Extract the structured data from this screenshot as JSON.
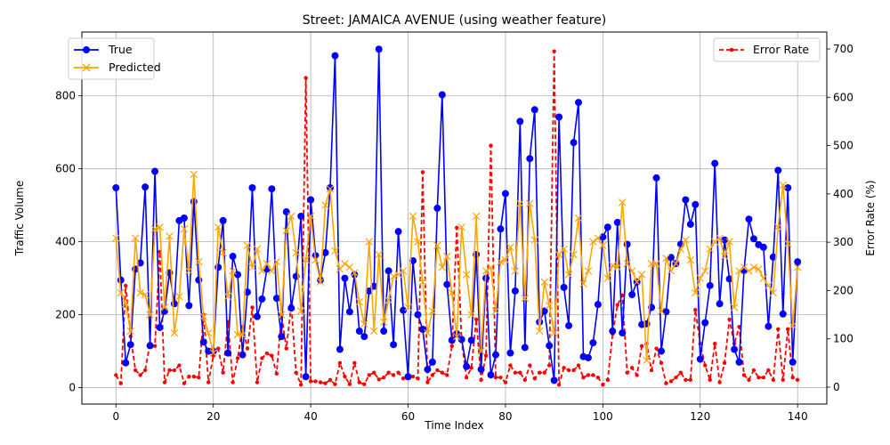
{
  "chart_data": {
    "type": "line",
    "title": "Street: JAMAICA AVENUE (using weather feature)",
    "xlabel": "Time Index",
    "ylabel": "Traffic Volume",
    "y2label": "Error Rate (%)",
    "xlim": [
      -7,
      146
    ],
    "ylim": [
      -45,
      975
    ],
    "y2lim": [
      -35,
      735
    ],
    "x_ticks": [
      0,
      20,
      40,
      60,
      80,
      100,
      120,
      140
    ],
    "y_ticks": [
      0,
      200,
      400,
      600,
      800
    ],
    "y2_ticks": [
      0,
      100,
      200,
      300,
      400,
      500,
      600,
      700
    ],
    "grid": true,
    "legend_left": "upper-left",
    "legend_right": "upper-right",
    "series": [
      {
        "name": "True",
        "axis": "left",
        "color": "#0000ff",
        "marker": "circle",
        "linestyle": "solid",
        "values": [
          548,
          295,
          68,
          118,
          325,
          342,
          550,
          115,
          593,
          165,
          210,
          315,
          230,
          458,
          465,
          225,
          510,
          295,
          125,
          100,
          100,
          330,
          458,
          95,
          360,
          310,
          90,
          262,
          548,
          195,
          243,
          325,
          545,
          245,
          140,
          482,
          218,
          305,
          470,
          30,
          515,
          362,
          295,
          370,
          548,
          910,
          105,
          300,
          208,
          310,
          155,
          140,
          265,
          278,
          928,
          155,
          320,
          118,
          428,
          212,
          30,
          348,
          200,
          160,
          50,
          70,
          492,
          803,
          283,
          130,
          148,
          132,
          58,
          130,
          365,
          50,
          300,
          35,
          90,
          435,
          532,
          95,
          265,
          730,
          110,
          628,
          762,
          180,
          210,
          115,
          20,
          742,
          275,
          170,
          672,
          782,
          85,
          82,
          123,
          228,
          413,
          440,
          155,
          453,
          150,
          393,
          255,
          290,
          173,
          175,
          220,
          575,
          100,
          208,
          357,
          340,
          393,
          515,
          448,
          502,
          78,
          178,
          280,
          615,
          230,
          405,
          298,
          105,
          70,
          322,
          462,
          408,
          392,
          385,
          168,
          358,
          596,
          202,
          548,
          70,
          345
        ]
      },
      {
        "name": "Predicted",
        "axis": "left",
        "color": "#ffa500",
        "marker": "x",
        "linestyle": "solid",
        "values": [
          410,
          260,
          230,
          155,
          410,
          260,
          255,
          200,
          435,
          440,
          220,
          415,
          150,
          250,
          435,
          320,
          585,
          345,
          195,
          150,
          95,
          440,
          370,
          250,
          320,
          145,
          145,
          390,
          330,
          380,
          320,
          340,
          320,
          345,
          200,
          430,
          470,
          370,
          210,
          350,
          470,
          350,
          290,
          500,
          545,
          375,
          325,
          340,
          330,
          315,
          235,
          175,
          400,
          155,
          365,
          180,
          240,
          305,
          310,
          320,
          220,
          470,
          400,
          290,
          150,
          210,
          390,
          330,
          360,
          260,
          140,
          440,
          310,
          200,
          470,
          100,
          320,
          330,
          210,
          345,
          350,
          385,
          320,
          505,
          245,
          505,
          405,
          155,
          290,
          225,
          150,
          365,
          380,
          310,
          365,
          465,
          285,
          320,
          400,
          410,
          390,
          300,
          335,
          330,
          508,
          340,
          320,
          290,
          310,
          75,
          340,
          340,
          210,
          355,
          320,
          340,
          380,
          405,
          350,
          260,
          300,
          320,
          380,
          400,
          410,
          360,
          400,
          220,
          320,
          330,
          320,
          330,
          325,
          300,
          280,
          260,
          440,
          555,
          395,
          170,
          330
        ]
      },
      {
        "name": "Error Rate",
        "axis": "right",
        "color": "#ff0000",
        "marker": "dot",
        "linestyle": "dashed",
        "values": [
          25,
          8,
          210,
          105,
          35,
          25,
          35,
          90,
          85,
          280,
          10,
          35,
          35,
          45,
          8,
          22,
          22,
          20,
          150,
          10,
          65,
          80,
          30,
          135,
          10,
          60,
          125,
          80,
          165,
          10,
          60,
          70,
          65,
          28,
          150,
          80,
          170,
          30,
          5,
          640,
          12,
          12,
          10,
          8,
          15,
          6,
          50,
          22,
          6,
          50,
          10,
          6,
          25,
          30,
          16,
          20,
          30,
          25,
          30,
          18,
          20,
          22,
          18,
          445,
          10,
          25,
          35,
          30,
          25,
          85,
          330,
          95,
          20,
          40,
          140,
          15,
          65,
          500,
          20,
          20,
          10,
          45,
          30,
          30,
          15,
          45,
          18,
          30,
          30,
          45,
          695,
          5,
          40,
          35,
          35,
          45,
          20,
          25,
          25,
          20,
          5,
          15,
          110,
          170,
          190,
          30,
          40,
          25,
          85,
          90,
          35,
          80,
          50,
          8,
          12,
          20,
          30,
          15,
          15,
          160,
          90,
          45,
          15,
          90,
          10,
          50,
          140,
          90,
          125,
          25,
          15,
          35,
          20,
          20,
          35,
          15,
          120,
          15,
          120,
          20,
          15
        ]
      }
    ]
  }
}
